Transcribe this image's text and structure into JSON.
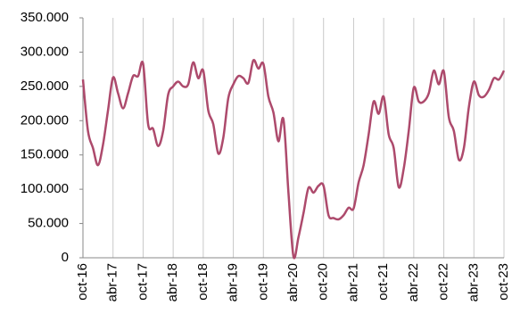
{
  "chart_data": {
    "type": "line",
    "categories": [
      "oct-16",
      null,
      null,
      null,
      null,
      null,
      "abr-17",
      null,
      null,
      null,
      null,
      null,
      "oct-17",
      null,
      null,
      null,
      null,
      null,
      "abr-18",
      null,
      null,
      null,
      null,
      null,
      "oct-18",
      null,
      null,
      null,
      null,
      null,
      "abr-19",
      null,
      null,
      null,
      null,
      null,
      "oct-19",
      null,
      null,
      null,
      null,
      null,
      "abr-20",
      null,
      null,
      null,
      null,
      null,
      "oct-20",
      null,
      null,
      null,
      null,
      null,
      "abr-21",
      null,
      null,
      null,
      null,
      null,
      "oct-21",
      null,
      null,
      null,
      null,
      null,
      "abr-22",
      null,
      null,
      null,
      null,
      null,
      "oct-22",
      null,
      null,
      null,
      null,
      null,
      "abr-23",
      null,
      null,
      null,
      null,
      null,
      "oct-23"
    ],
    "series": [
      {
        "color": "#ad4a6c",
        "values": [
          260000,
          185000,
          160000,
          135000,
          165000,
          215000,
          263000,
          240000,
          218000,
          240000,
          265000,
          265000,
          283000,
          195000,
          188000,
          163000,
          185000,
          238000,
          250000,
          257000,
          250000,
          253000,
          285000,
          262000,
          273000,
          215000,
          195000,
          152000,
          175000,
          233000,
          253000,
          265000,
          262000,
          255000,
          288000,
          276000,
          283000,
          235000,
          212000,
          170000,
          202000,
          95000,
          2000,
          30000,
          65000,
          102000,
          95000,
          105000,
          105000,
          62000,
          58000,
          56000,
          62000,
          73000,
          72000,
          110000,
          135000,
          180000,
          228000,
          210000,
          235000,
          180000,
          160000,
          103000,
          130000,
          185000,
          248000,
          228000,
          228000,
          240000,
          273000,
          253000,
          272000,
          205000,
          185000,
          143000,
          160000,
          220000,
          257000,
          237000,
          235000,
          245000,
          262000,
          260000,
          273000
        ]
      }
    ],
    "ylim": [
      0,
      350000
    ],
    "yticks": [
      0,
      {
        "value": 50000,
        "label": "50.000"
      },
      {
        "value": 100000,
        "label": "100.000"
      },
      {
        "value": 150000,
        "label": "150.000"
      },
      {
        "value": 200000,
        "label": "200.000"
      },
      {
        "value": 250000,
        "label": "250.000"
      },
      {
        "value": 300000,
        "label": "300.000"
      },
      {
        "value": 350000,
        "label": "350.000"
      }
    ],
    "grid": true
  }
}
